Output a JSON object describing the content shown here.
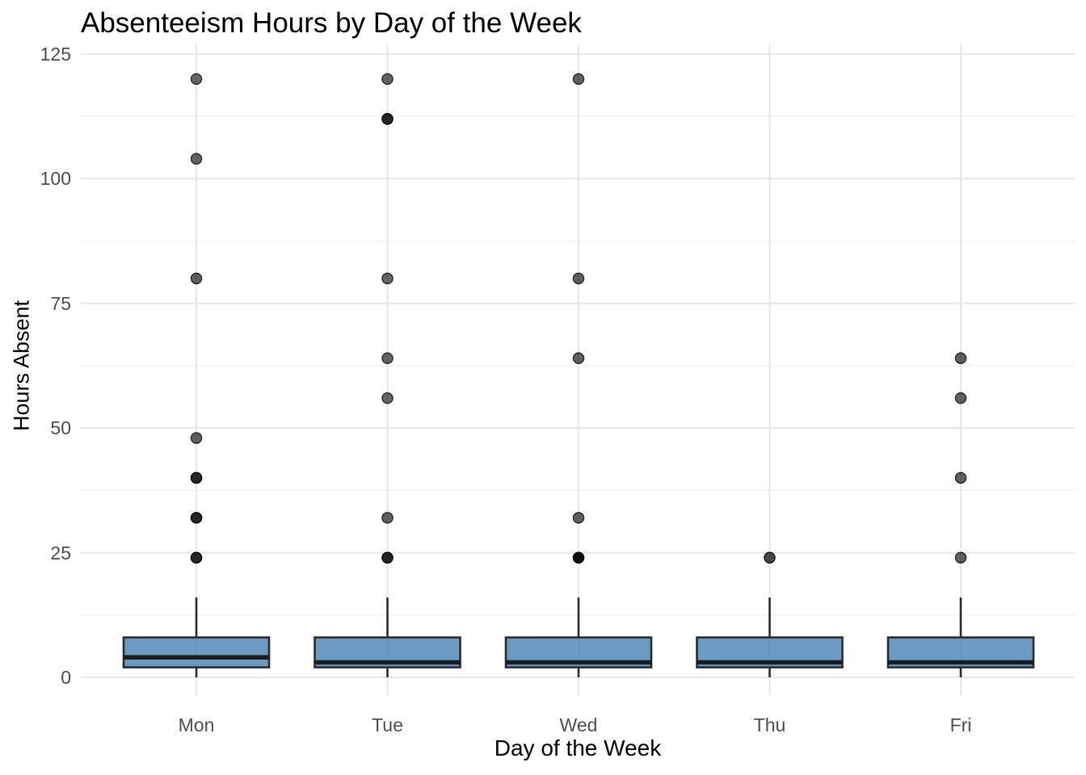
{
  "page": {
    "background": "#FFFFFF"
  },
  "chart_data": {
    "type": "boxplot",
    "title": "Absenteeism Hours by Day of the Week",
    "xlabel": "Day of the Week",
    "ylabel": "Hours Absent",
    "categories": [
      "Mon",
      "Tue",
      "Wed",
      "Thu",
      "Fri"
    ],
    "y_ticks": [
      0,
      25,
      50,
      75,
      100,
      125
    ],
    "y_minor_gridlines": [
      12.5,
      37.5,
      62.5,
      87.5,
      112.5
    ],
    "ylim": [
      0,
      125
    ],
    "grid": "on",
    "legend": "none",
    "series": [
      {
        "label": "Mon",
        "whisker_low": 0,
        "q1": 2,
        "median": 4,
        "q3": 8,
        "whisker_high": 16,
        "outliers": [
          {
            "value": 120,
            "opacity": 0.6
          },
          {
            "value": 104,
            "opacity": 0.6
          },
          {
            "value": 80,
            "opacity": 0.62
          },
          {
            "value": 48,
            "opacity": 0.62
          },
          {
            "value": 40,
            "opacity": 0.85
          },
          {
            "value": 32,
            "opacity": 0.85
          },
          {
            "value": 24,
            "opacity": 0.85
          }
        ]
      },
      {
        "label": "Tue",
        "whisker_low": 0,
        "q1": 2,
        "median": 3,
        "q3": 8,
        "whisker_high": 16,
        "outliers": [
          {
            "value": 120,
            "opacity": 0.6
          },
          {
            "value": 112,
            "opacity": 0.85
          },
          {
            "value": 80,
            "opacity": 0.6
          },
          {
            "value": 64,
            "opacity": 0.6
          },
          {
            "value": 56,
            "opacity": 0.6
          },
          {
            "value": 32,
            "opacity": 0.62
          },
          {
            "value": 24,
            "opacity": 0.85
          }
        ]
      },
      {
        "label": "Wed",
        "whisker_low": 0,
        "q1": 2,
        "median": 3,
        "q3": 8,
        "whisker_high": 16,
        "outliers": [
          {
            "value": 120,
            "opacity": 0.62
          },
          {
            "value": 80,
            "opacity": 0.62
          },
          {
            "value": 64,
            "opacity": 0.62
          },
          {
            "value": 32,
            "opacity": 0.62
          },
          {
            "value": 24,
            "opacity": 0.95
          }
        ]
      },
      {
        "label": "Thu",
        "whisker_low": 0,
        "q1": 2,
        "median": 3,
        "q3": 8,
        "whisker_high": 16,
        "outliers": [
          {
            "value": 24,
            "opacity": 0.7
          }
        ]
      },
      {
        "label": "Fri",
        "whisker_low": 0,
        "q1": 2,
        "median": 3,
        "q3": 8,
        "whisker_high": 16,
        "outliers": [
          {
            "value": 64,
            "opacity": 0.62
          },
          {
            "value": 56,
            "opacity": 0.62
          },
          {
            "value": 40,
            "opacity": 0.62
          },
          {
            "value": 24,
            "opacity": 0.62
          }
        ]
      }
    ],
    "colors": {
      "box_fill": "#4682B4",
      "box_fill_opacity": 0.8,
      "box_border": "#2B2B2B",
      "median": "#1C1C1C",
      "whisker": "#2B2B2B",
      "outlier": "#000000",
      "grid_major": "#E4E4E4",
      "grid_minor": "#F0F0F0",
      "tick_label": "#4D4D4D",
      "axis_title": "#000000",
      "title": "#000000",
      "background": "#FFFFFF"
    }
  }
}
